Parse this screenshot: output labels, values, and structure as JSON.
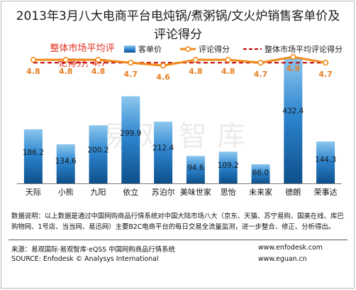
{
  "title_line1": "2013年3月八大电商平台电炖锅/煮粥锅/文火炉销售客单价及",
  "title_line2": "评论得分",
  "market_note_line1": "整体市场平均评",
  "market_note_line2": "论得分, 4.7",
  "legend": {
    "bar": "客单价",
    "line": "评论得分",
    "avg": "整体市场平均评论得分"
  },
  "watermark": "易观智库",
  "colors": {
    "bar_top": "#8cc7ee",
    "bar_mid": "#2e86d0",
    "bar_bottom": "#0d4f8a",
    "line": "#f08a1c",
    "score_label": "#e67e22",
    "avg_line": "#c00000"
  },
  "chart_data": {
    "type": "bar",
    "categories": [
      "天际",
      "小熊",
      "九阳",
      "依立",
      "苏泊尔",
      "美味世家",
      "思怡",
      "未来家",
      "德朗",
      "荣事达"
    ],
    "series": [
      {
        "name": "客单价",
        "type": "bar",
        "values": [
          186.2,
          134.6,
          200.2,
          299.9,
          212.4,
          94.6,
          109.2,
          66.0,
          432.4,
          144.3
        ]
      },
      {
        "name": "评论得分",
        "type": "line",
        "values": [
          4.8,
          4.8,
          4.8,
          4.7,
          4.6,
          4.8,
          4.8,
          4.7,
          4.9,
          4.7
        ]
      },
      {
        "name": "整体市场平均评论得分",
        "type": "line",
        "style": "dashed",
        "values": [
          4.7,
          4.7,
          4.7,
          4.7,
          4.7,
          4.7,
          4.7,
          4.7,
          4.7,
          4.7
        ]
      }
    ],
    "bar_labels": [
      "186.2",
      "134.6",
      "200.2",
      "299.9",
      "212.4",
      "94.6",
      "109.2",
      "66.0",
      "432.4",
      "144.3"
    ],
    "score_labels": [
      "4.8",
      "4.8",
      "4.8",
      "4.7",
      "4.6",
      "4.8",
      "4.8",
      "4.7",
      "4.9",
      "4.7"
    ],
    "ylim_bar": [
      0,
      460
    ],
    "ylim_score": [
      0.5,
      5.15
    ],
    "grid": false,
    "legend_position": "top"
  },
  "notes": "数据说明：以上数据是通过中国网购商品行情系统对中国大陆市场八大（京东、天猫、苏宁易购、国美在线、库巴购物网、1号店、当当网、易迅网）主要B2C电商平台的每日交易全流量监测，进一步整合、修正、分析得出。",
  "source_cn": "来源：易观国际·易观智库·eQSS 中国网购商品行情系统",
  "url_1": "www.enfodesk.com",
  "source_en": "SOURCE: Enfodesk © Analysys International",
  "url_2": "www.eguan.cn"
}
